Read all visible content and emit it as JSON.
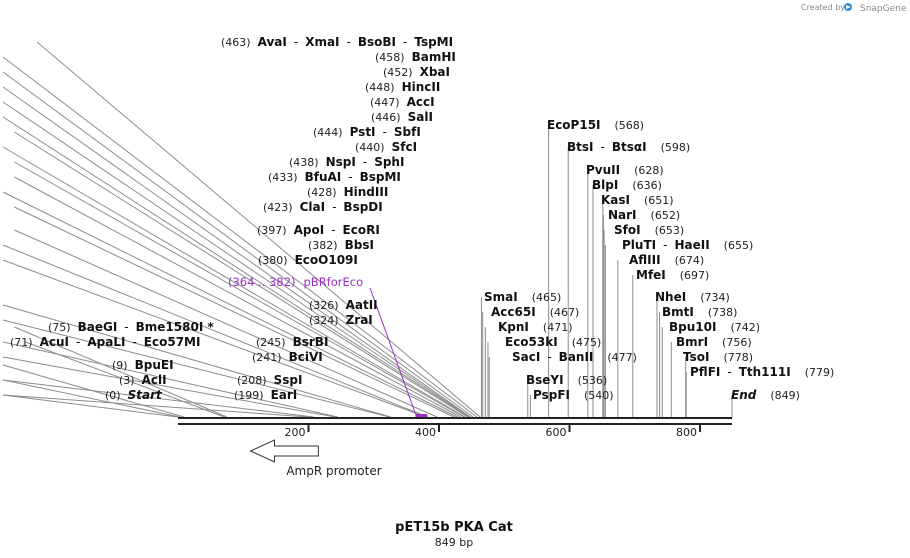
{
  "credit": {
    "prefix": "Created by",
    "brand": "SnapGene"
  },
  "title": "pET15b PKA Cat",
  "subtitle": "849 bp",
  "sequence_length": 849,
  "ticks": [
    "200",
    "400",
    "600",
    "800"
  ],
  "features": {
    "primer": {
      "name": "pBRforEco",
      "range": "(364 .. 382)",
      "start": 364,
      "end": 382,
      "color": "#9b30c8"
    },
    "promoter": {
      "name": "AmpR promoter",
      "direction": "reverse",
      "start": 105,
      "end": 209
    }
  },
  "left_sites": [
    {
      "bp": 463,
      "pos": "(463)",
      "names": [
        "AvaI",
        "XmaI",
        "BsoBI",
        "TspMI"
      ]
    },
    {
      "bp": 458,
      "pos": "(458)",
      "names": [
        "BamHI"
      ]
    },
    {
      "bp": 452,
      "pos": "(452)",
      "names": [
        "XbaI"
      ]
    },
    {
      "bp": 448,
      "pos": "(448)",
      "names": [
        "HincII"
      ]
    },
    {
      "bp": 447,
      "pos": "(447)",
      "names": [
        "AccI"
      ]
    },
    {
      "bp": 446,
      "pos": "(446)",
      "names": [
        "SalI"
      ]
    },
    {
      "bp": 444,
      "pos": "(444)",
      "names": [
        "PstI",
        "SbfI"
      ]
    },
    {
      "bp": 440,
      "pos": "(440)",
      "names": [
        "SfcI"
      ]
    },
    {
      "bp": 438,
      "pos": "(438)",
      "names": [
        "NspI",
        "SphI"
      ]
    },
    {
      "bp": 433,
      "pos": "(433)",
      "names": [
        "BfuAI",
        "BspMI"
      ]
    },
    {
      "bp": 428,
      "pos": "(428)",
      "names": [
        "HindIII"
      ]
    },
    {
      "bp": 423,
      "pos": "(423)",
      "names": [
        "ClaI",
        "BspDI"
      ]
    },
    {
      "bp": 397,
      "pos": "(397)",
      "names": [
        "ApoI",
        "EcoRI"
      ]
    },
    {
      "bp": 382,
      "pos": "(382)",
      "names": [
        "BbsI"
      ]
    },
    {
      "bp": 380,
      "pos": "(380)",
      "names": [
        "EcoO109I"
      ]
    },
    {
      "bp": 326,
      "pos": "(326)",
      "names": [
        "AatII"
      ]
    },
    {
      "bp": 324,
      "pos": "(324)",
      "names": [
        "ZraI"
      ]
    },
    {
      "bp": 75,
      "pos": "(75)",
      "names": [
        "BaeGI",
        "Bme1580I *"
      ]
    },
    {
      "bp": 71,
      "pos": "(71)",
      "names": [
        "AcuI",
        "ApaLI",
        "Eco57MI"
      ]
    },
    {
      "bp": 245,
      "pos": "(245)",
      "names": [
        "BsrBI"
      ]
    },
    {
      "bp": 241,
      "pos": "(241)",
      "names": [
        "BciVI"
      ]
    },
    {
      "bp": 9,
      "pos": "(9)",
      "names": [
        "BpuEI"
      ]
    },
    {
      "bp": 3,
      "pos": "(3)",
      "names": [
        "AclI"
      ]
    },
    {
      "bp": 208,
      "pos": "(208)",
      "names": [
        "SspI"
      ]
    },
    {
      "bp": 0,
      "pos": "(0)",
      "names": [
        "Start"
      ],
      "italic": true
    },
    {
      "bp": 199,
      "pos": "(199)",
      "names": [
        "EarI"
      ]
    }
  ],
  "right_sites": [
    {
      "bp": 568,
      "pos": "(568)",
      "names": [
        "EcoP15I"
      ]
    },
    {
      "bp": 598,
      "pos": "(598)",
      "names": [
        "BtsI",
        "BtsαI"
      ]
    },
    {
      "bp": 628,
      "pos": "(628)",
      "names": [
        "PvuII"
      ]
    },
    {
      "bp": 636,
      "pos": "(636)",
      "names": [
        "BlpI"
      ]
    },
    {
      "bp": 651,
      "pos": "(651)",
      "names": [
        "KasI"
      ]
    },
    {
      "bp": 652,
      "pos": "(652)",
      "names": [
        "NarI"
      ]
    },
    {
      "bp": 653,
      "pos": "(653)",
      "names": [
        "SfoI"
      ]
    },
    {
      "bp": 655,
      "pos": "(655)",
      "names": [
        "PluTI",
        "HaeII"
      ]
    },
    {
      "bp": 674,
      "pos": "(674)",
      "names": [
        "AflIII"
      ]
    },
    {
      "bp": 697,
      "pos": "(697)",
      "names": [
        "MfeI"
      ]
    },
    {
      "bp": 465,
      "pos": "(465)",
      "names": [
        "SmaI"
      ]
    },
    {
      "bp": 467,
      "pos": "(467)",
      "names": [
        "Acc65I"
      ]
    },
    {
      "bp": 471,
      "pos": "(471)",
      "names": [
        "KpnI"
      ]
    },
    {
      "bp": 475,
      "pos": "(475)",
      "names": [
        "Eco53kI"
      ]
    },
    {
      "bp": 477,
      "pos": "(477)",
      "names": [
        "SacI",
        "BanII"
      ]
    },
    {
      "bp": 536,
      "pos": "(536)",
      "names": [
        "BseYI"
      ]
    },
    {
      "bp": 540,
      "pos": "(540)",
      "names": [
        "PspFI"
      ]
    },
    {
      "bp": 734,
      "pos": "(734)",
      "names": [
        "NheI"
      ]
    },
    {
      "bp": 738,
      "pos": "(738)",
      "names": [
        "BmtI"
      ]
    },
    {
      "bp": 742,
      "pos": "(742)",
      "names": [
        "Bpu10I"
      ]
    },
    {
      "bp": 756,
      "pos": "(756)",
      "names": [
        "BmrI"
      ]
    },
    {
      "bp": 778,
      "pos": "(778)",
      "names": [
        "TsoI"
      ]
    },
    {
      "bp": 779,
      "pos": "(779)",
      "names": [
        "PflFI",
        "Tth111I"
      ]
    },
    {
      "bp": 849,
      "pos": "(849)",
      "names": [
        "End"
      ],
      "italic": true
    }
  ]
}
